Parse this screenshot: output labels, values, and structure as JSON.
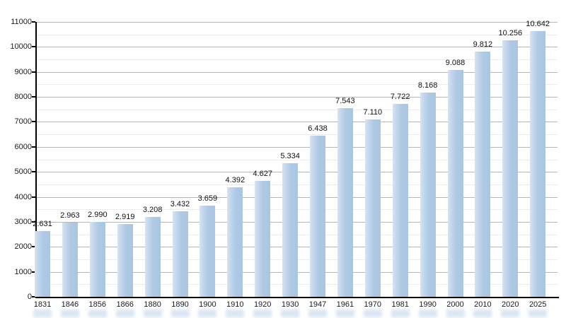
{
  "chart_data": {
    "type": "bar",
    "title": "",
    "xlabel": "",
    "ylabel": "",
    "categories": [
      "1831",
      "1846",
      "1856",
      "1866",
      "1880",
      "1890",
      "1900",
      "1910",
      "1920",
      "1930",
      "1947",
      "1961",
      "1970",
      "1981",
      "1990",
      "2000",
      "2010",
      "2020",
      "2025"
    ],
    "values": [
      2631,
      2963,
      2990,
      2919,
      3208,
      3432,
      3659,
      4392,
      4627,
      5334,
      6438,
      7543,
      7110,
      7722,
      8168,
      9088,
      9812,
      10256,
      10642
    ],
    "value_labels": [
      "2.631",
      "2.963",
      "2.990",
      "2.919",
      "3.208",
      "3.432",
      "3.659",
      "4.392",
      "4.627",
      "5.334",
      "6.438",
      "7.543",
      "7.110",
      "7.722",
      "8.168",
      "9.088",
      "9.812",
      "10.256",
      "10.642"
    ],
    "ylim": [
      0,
      11000
    ],
    "y_major_ticks": [
      0,
      1000,
      2000,
      3000,
      4000,
      5000,
      6000,
      7000,
      8000,
      9000,
      10000,
      11000
    ],
    "y_minor_step": 500,
    "grid": "horizontal major gridlines every 1000, faint minor gridlines every 500",
    "legend_position": "none",
    "colors": {
      "bar_fill": "#aec9e4",
      "bar_highlight": "#d6e3f2",
      "major_gridline": "#b5b5b5",
      "minor_gridline": "#ececec",
      "axis": "#000000",
      "label_text": "#1a1a1a",
      "background": "#ffffff"
    }
  }
}
